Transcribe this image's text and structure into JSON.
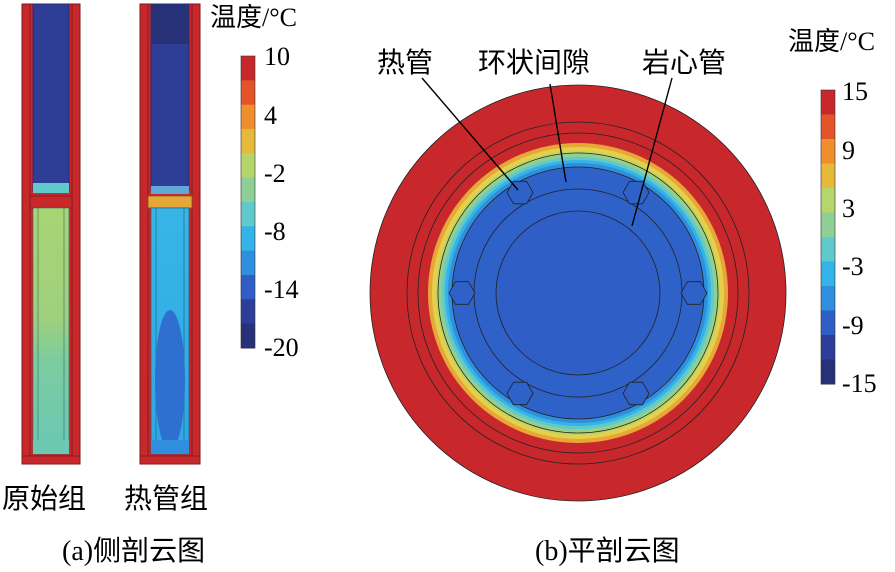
{
  "left_panel": {
    "legend_title": "温度/°C",
    "legend_ticks": [
      "10",
      "4",
      "-2",
      "-8",
      "-14",
      "-20"
    ],
    "legend_colors": [
      "#c8282c",
      "#e3542a",
      "#ee8e2c",
      "#e6b93a",
      "#b5d66a",
      "#8dcf95",
      "#5fc9cb",
      "#33b3e8",
      "#2f8ede",
      "#2f5fc6",
      "#2d3d9a",
      "#273177"
    ],
    "label_original": "原始组",
    "label_heatpipe": "热管组",
    "caption": "(a)侧剖云图"
  },
  "right_panel": {
    "legend_title": "温度/°C",
    "legend_ticks": [
      "15",
      "9",
      "3",
      "-3",
      "-9",
      "-15"
    ],
    "legend_colors": [
      "#c8282c",
      "#e3542a",
      "#ee8e2c",
      "#e6b93a",
      "#b5d66a",
      "#8dcf95",
      "#5fc9cb",
      "#33b3e8",
      "#2f8ede",
      "#2f5fc6",
      "#2d3d9a",
      "#273177"
    ],
    "annotation_heatpipe": "热管",
    "annotation_annulus": "环状间隙",
    "annotation_core": "岩心管",
    "caption": "(b)平剖云图"
  }
}
